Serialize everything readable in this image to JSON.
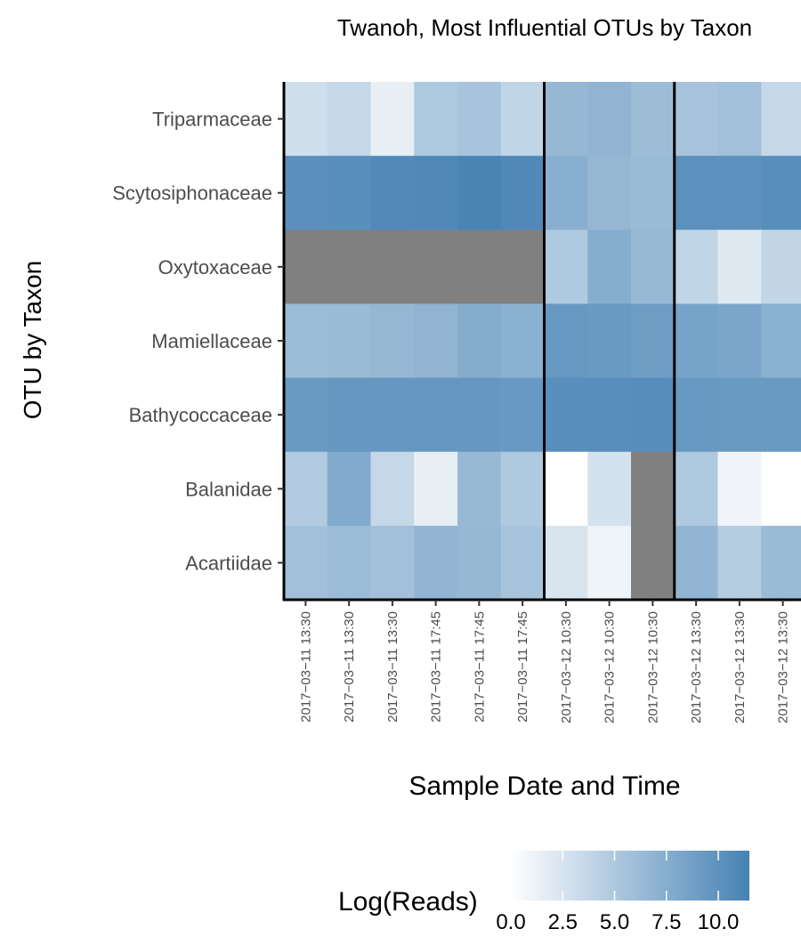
{
  "chart_data": {
    "type": "heatmap",
    "title": "Twanoh, Most Influential OTUs by Taxon",
    "xlabel": "Sample Date and Time",
    "ylabel": "OTU by Taxon",
    "x": [
      "2017−03−11 13:30",
      "2017−03−11 13:30",
      "2017−03−11 13:30",
      "2017−03−11 17:45",
      "2017−03−11 17:45",
      "2017−03−11 17:45",
      "2017−03−12 10:30",
      "2017−03−12 10:30",
      "2017−03−12 10:30",
      "2017−03−12 13:30",
      "2017−03−12 13:30",
      "2017−03−12 13:30"
    ],
    "y": [
      "Triparmaceae",
      "Scytosiphonaceae",
      "Oxytoxaceae",
      "Mamiellaceae",
      "Bathycoccaceae",
      "Balanidae",
      "Acartiidae"
    ],
    "values": [
      [
        3.0,
        3.6,
        1.5,
        5.0,
        5.4,
        3.9,
        6.5,
        6.9,
        6.1,
        5.5,
        5.8,
        3.6
      ],
      [
        10.2,
        10.3,
        10.8,
        10.9,
        11.3,
        10.9,
        7.4,
        6.6,
        6.3,
        10.1,
        10.0,
        10.4
      ],
      [
        null,
        null,
        null,
        null,
        null,
        null,
        5.0,
        7.5,
        6.4,
        3.9,
        2.0,
        3.8
      ],
      [
        6.2,
        6.3,
        6.6,
        6.9,
        7.6,
        7.2,
        9.5,
        9.3,
        9.0,
        8.5,
        8.2,
        7.3
      ],
      [
        9.3,
        9.6,
        9.6,
        9.6,
        9.6,
        9.4,
        10.3,
        10.4,
        10.5,
        9.4,
        9.3,
        9.3
      ],
      [
        4.8,
        7.8,
        3.6,
        1.5,
        6.4,
        5.0,
        0.0,
        2.7,
        null,
        5.0,
        0.9,
        0.0
      ],
      [
        5.8,
        6.2,
        5.8,
        6.8,
        6.5,
        5.4,
        2.4,
        1.0,
        null,
        6.8,
        4.7,
        6.3
      ]
    ],
    "missing_color": "#808080",
    "colorscale": {
      "low": "#ffffff",
      "high": "#4682b4",
      "min": 0,
      "max": 11.5
    },
    "legend": {
      "title": "Log(Reads)",
      "ticks": [
        0.0,
        2.5,
        5.0,
        7.5,
        10.0
      ],
      "tick_labels": [
        "0.0",
        "2.5",
        "5.0",
        "7.5",
        "10.0"
      ],
      "position": "bottom"
    },
    "group_separators_after_column": [
      6,
      9
    ]
  }
}
